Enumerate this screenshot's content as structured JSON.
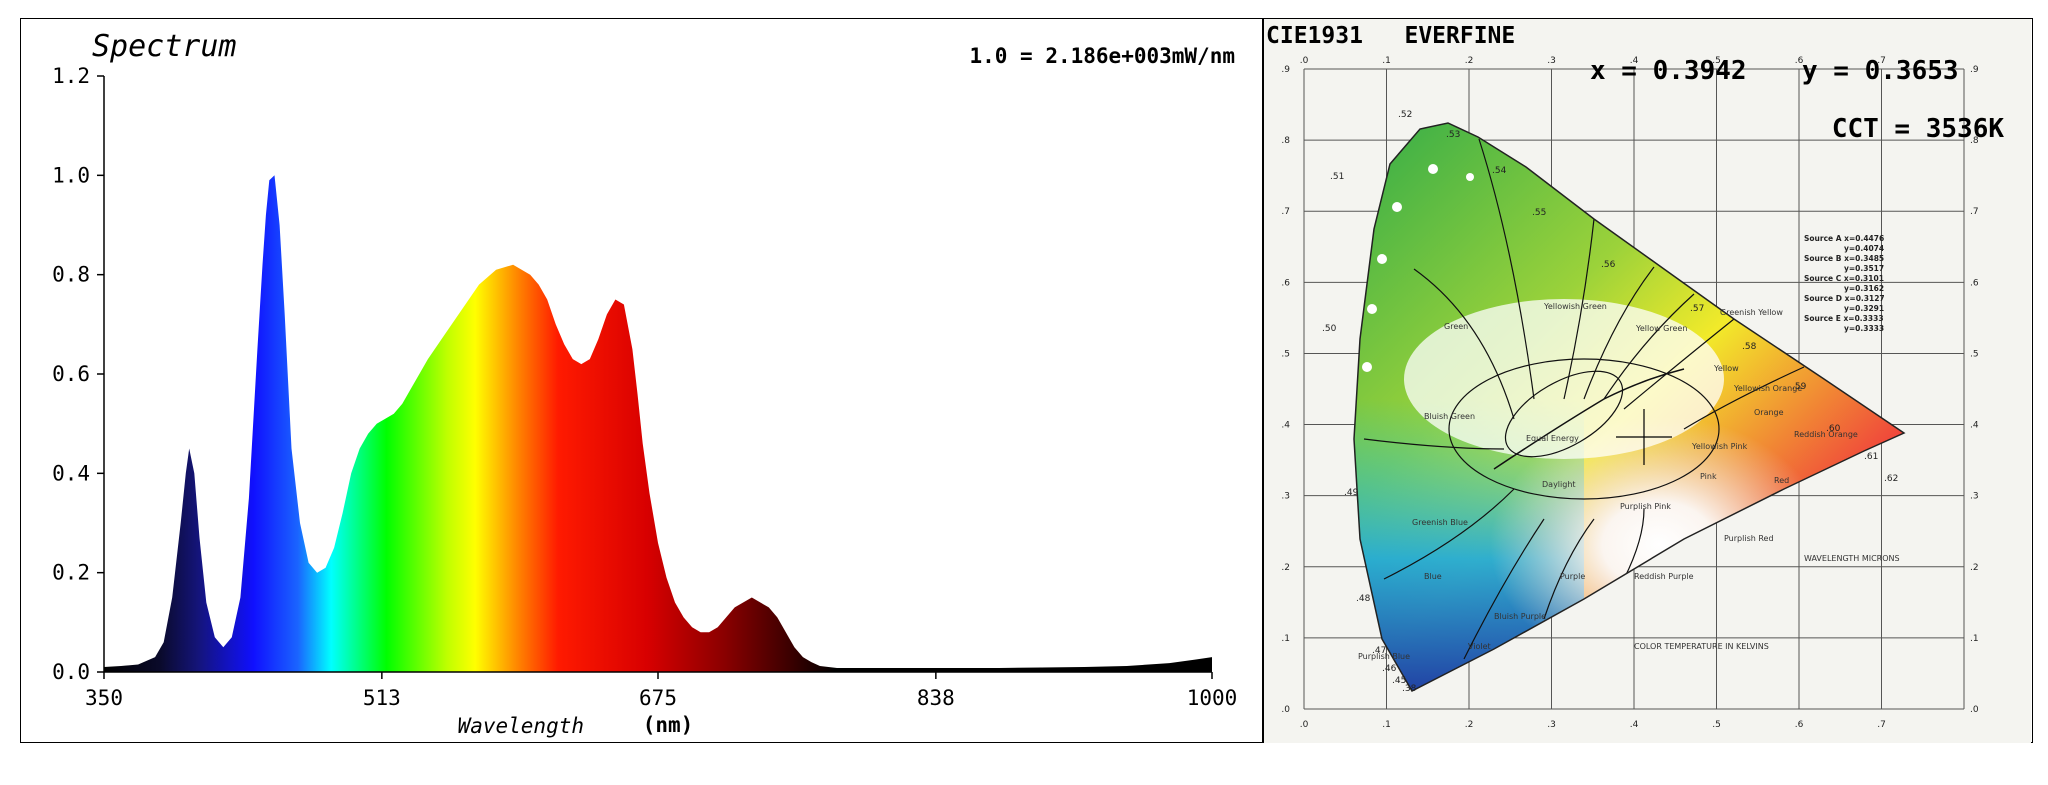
{
  "chart_data": [
    {
      "type": "area",
      "title": "Spectrum",
      "annotation": "1.0 = 2.186e+003mW/nm",
      "xlabel": "Wavelength",
      "xunit": "(nm)",
      "xlim": [
        350,
        1000
      ],
      "ylim": [
        0,
        1.2
      ],
      "xticks": [
        "350",
        "513",
        "675",
        "838",
        "1000"
      ],
      "yticks": [
        "0.0",
        "0.2",
        "0.4",
        "0.6",
        "0.8",
        "1.0",
        "1.2"
      ],
      "grid": false,
      "legend": "none",
      "fill": "wavelength-colored spectrum",
      "x": [
        350,
        360,
        370,
        380,
        385,
        390,
        395,
        398,
        400,
        403,
        406,
        410,
        415,
        420,
        425,
        430,
        435,
        440,
        443,
        445,
        447,
        450,
        453,
        456,
        460,
        465,
        470,
        475,
        480,
        485,
        490,
        495,
        500,
        505,
        510,
        515,
        520,
        525,
        530,
        540,
        550,
        560,
        570,
        580,
        590,
        600,
        605,
        610,
        615,
        620,
        625,
        630,
        635,
        640,
        645,
        650,
        655,
        660,
        663,
        666,
        670,
        675,
        680,
        685,
        690,
        695,
        700,
        705,
        710,
        720,
        730,
        740,
        745,
        750,
        755,
        760,
        765,
        770,
        780,
        790,
        800,
        825,
        850,
        875,
        900,
        925,
        950,
        975,
        990,
        1000
      ],
      "y": [
        0.01,
        0.012,
        0.015,
        0.03,
        0.06,
        0.15,
        0.3,
        0.4,
        0.45,
        0.4,
        0.27,
        0.14,
        0.07,
        0.05,
        0.07,
        0.15,
        0.35,
        0.65,
        0.82,
        0.92,
        0.99,
        1.0,
        0.9,
        0.72,
        0.45,
        0.3,
        0.22,
        0.2,
        0.21,
        0.25,
        0.32,
        0.4,
        0.45,
        0.48,
        0.5,
        0.51,
        0.52,
        0.54,
        0.57,
        0.63,
        0.68,
        0.73,
        0.78,
        0.81,
        0.82,
        0.8,
        0.78,
        0.75,
        0.7,
        0.66,
        0.63,
        0.62,
        0.63,
        0.67,
        0.72,
        0.75,
        0.74,
        0.65,
        0.56,
        0.46,
        0.36,
        0.26,
        0.19,
        0.14,
        0.11,
        0.09,
        0.08,
        0.08,
        0.09,
        0.13,
        0.15,
        0.13,
        0.11,
        0.08,
        0.05,
        0.03,
        0.02,
        0.012,
        0.008,
        0.008,
        0.008,
        0.008,
        0.008,
        0.008,
        0.009,
        0.01,
        0.012,
        0.018,
        0.025,
        0.03
      ]
    },
    {
      "type": "scatter",
      "title": "CIE1931   EVERFINE",
      "result_x": "x = 0.3942",
      "result_y": "y = 0.3653",
      "cct": "CCT = 3536K",
      "point": {
        "x": 0.3942,
        "y": 0.3653
      },
      "xlim": [
        0,
        0.8
      ],
      "ylim": [
        0,
        0.9
      ],
      "xticks": [
        ".0",
        ".1",
        ".2",
        ".3",
        ".4",
        ".5",
        ".6",
        ".7"
      ],
      "yticks": [
        ".0",
        ".1",
        ".2",
        ".3",
        ".4",
        ".5",
        ".6",
        ".7",
        ".8",
        ".9"
      ],
      "wavelength_labels": [
        ".52",
        ".53",
        ".54",
        ".55",
        ".56",
        ".57",
        ".58",
        ".59",
        ".60",
        ".61",
        ".62",
        ".51",
        ".50",
        ".49",
        ".48",
        ".47",
        ".46",
        ".45",
        ".38"
      ],
      "region_labels": [
        "Green",
        "Yellowish Green",
        "Yellow Green",
        "Greenish Yellow",
        "Yellow",
        "Yellowish Orange",
        "Orange",
        "Reddish Orange",
        "Red",
        "Pink",
        "Yellowish Pink",
        "Purplish Pink",
        "Purplish Red",
        "Reddish Purple",
        "Purple",
        "Bluish Purple",
        "Violet",
        "Blue",
        "Greenish Blue",
        "Bluish Green",
        "Purplish Blue",
        "Equal Energy",
        "Daylight"
      ],
      "source_legend": [
        "Source A  x=0.4476",
        "y=0.4074",
        "Source B  x=0.3485",
        "y=0.3517",
        "Source C  x=0.3101",
        "y=0.3162",
        "Source D  x=0.3127",
        "y=0.3291",
        "Source E  x=0.3333",
        "y=0.3333"
      ],
      "note_wavelength": "WAVELENGTH MICRONS",
      "note_color_temp": "COLOR TEMPERATURE IN KELVINS"
    }
  ],
  "colors": {
    "frame": "#000000",
    "background": "#ffffff",
    "text": "#000000"
  }
}
